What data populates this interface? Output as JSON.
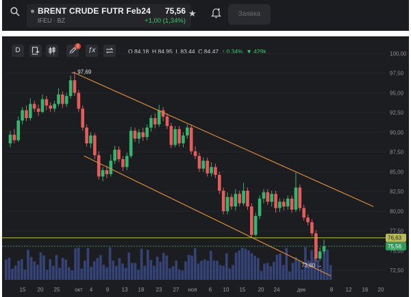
{
  "header": {
    "symbol_name": "BRENT CRUDE FUTR Feb24",
    "exchange": "IFEU · BZ",
    "price": "75,56",
    "change": "+1,00 (1,34%)",
    "order_button": "Заявка",
    "icons": [
      "search-icon",
      "star-icon",
      "alert-bell-icon"
    ]
  },
  "toolbar": {
    "timeframe": "D",
    "badge_count": "2",
    "buttons": [
      "timeframe-button",
      "indicators-button",
      "chart-type-button",
      "drawing-tools-button",
      "formula-button",
      "compare-button"
    ],
    "ohlc": {
      "o_label": "O",
      "o": "84.18",
      "h_label": "H",
      "h": "84.95",
      "l_label": "L",
      "l": "83.44",
      "c_label": "C",
      "c": "84.47",
      "chg": "0.34%",
      "vol": "429k"
    }
  },
  "chart_data": {
    "type": "candlestick",
    "y_ticks": [
      "100,00",
      "97,50",
      "95,00",
      "92,50",
      "90,00",
      "87,50",
      "85,00",
      "82,50",
      "80,00",
      "77,50",
      "72,50"
    ],
    "x_ticks": [
      "15",
      "20",
      "25",
      "окт",
      "4",
      "9",
      "13",
      "18",
      "23",
      "27",
      "ноя",
      "6",
      "10",
      "15",
      "20",
      "24",
      "дек",
      "8",
      "12",
      "16",
      "20"
    ],
    "ylim": [
      71.3,
      100.6
    ],
    "annotations": {
      "high": "97,69",
      "low": "73,60"
    },
    "price_labels": {
      "line": "76,63",
      "last": "75,56",
      "below": "75,00"
    },
    "colors": {
      "up": "#35b56d",
      "down": "#e35d5d",
      "channel": "#d98a3c",
      "hline": "#b9bf56",
      "volume": "#3b4a86"
    }
  }
}
